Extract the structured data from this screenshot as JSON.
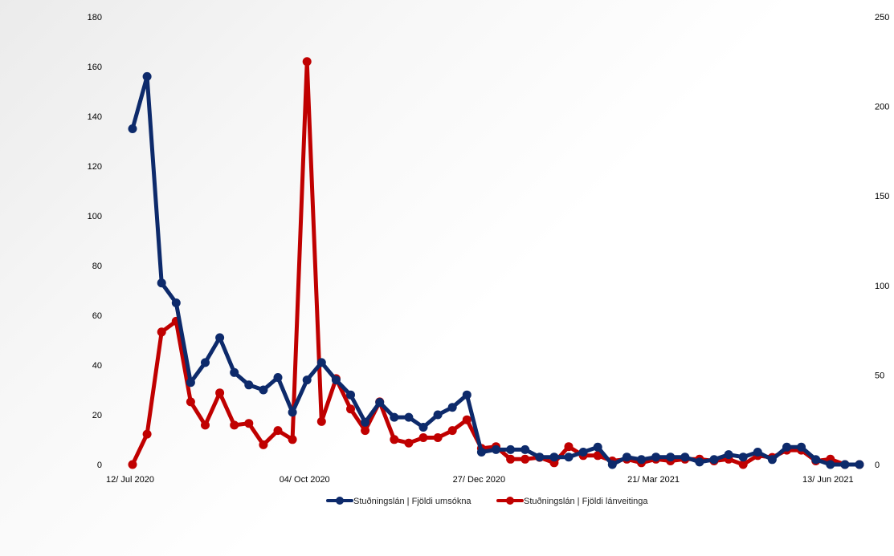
{
  "chart_data": {
    "type": "line",
    "x_tick_labels": [
      "12/ Jul 2020",
      "04/ Oct 2020",
      "27/ Dec 2020",
      "21/ Mar 2021",
      "13/ Jun 2021"
    ],
    "y_left": {
      "min": 0,
      "max": 180,
      "ticks": [
        0,
        20,
        40,
        60,
        80,
        100,
        120,
        140,
        160,
        180
      ]
    },
    "y_right": {
      "min": 0,
      "max": 250,
      "ticks": [
        0,
        50,
        100,
        150,
        200,
        250
      ]
    },
    "grid": false,
    "legend_position": "bottom",
    "series": [
      {
        "name": "Stuðningslán | Fjöldi umsókna",
        "axis": "left",
        "color": "#0d2a6b",
        "values": [
          135,
          156,
          73,
          65,
          33,
          41,
          51,
          37,
          32,
          30,
          35,
          21,
          34,
          41,
          34,
          28,
          17,
          25,
          19,
          19,
          15,
          20,
          23,
          28,
          5,
          6,
          6,
          6,
          3,
          3,
          3,
          5,
          7,
          0,
          3,
          2,
          3,
          3,
          3,
          1,
          2,
          4,
          3,
          5,
          2,
          7,
          7,
          2,
          0,
          0,
          0
        ]
      },
      {
        "name": "Stuðningslán | Fjöldi lánveitinga",
        "axis": "right",
        "color": "#c00000",
        "values": [
          0,
          17,
          74,
          80,
          35,
          22,
          40,
          22,
          23,
          11,
          19,
          14,
          225,
          24,
          48,
          31,
          19,
          35,
          14,
          12,
          15,
          15,
          19,
          25,
          9,
          10,
          3,
          3,
          4,
          1,
          10,
          5,
          5,
          2,
          3,
          1,
          3,
          2,
          3,
          3,
          2,
          3,
          0,
          5,
          4,
          8,
          8,
          2,
          3,
          0,
          0
        ]
      }
    ]
  }
}
